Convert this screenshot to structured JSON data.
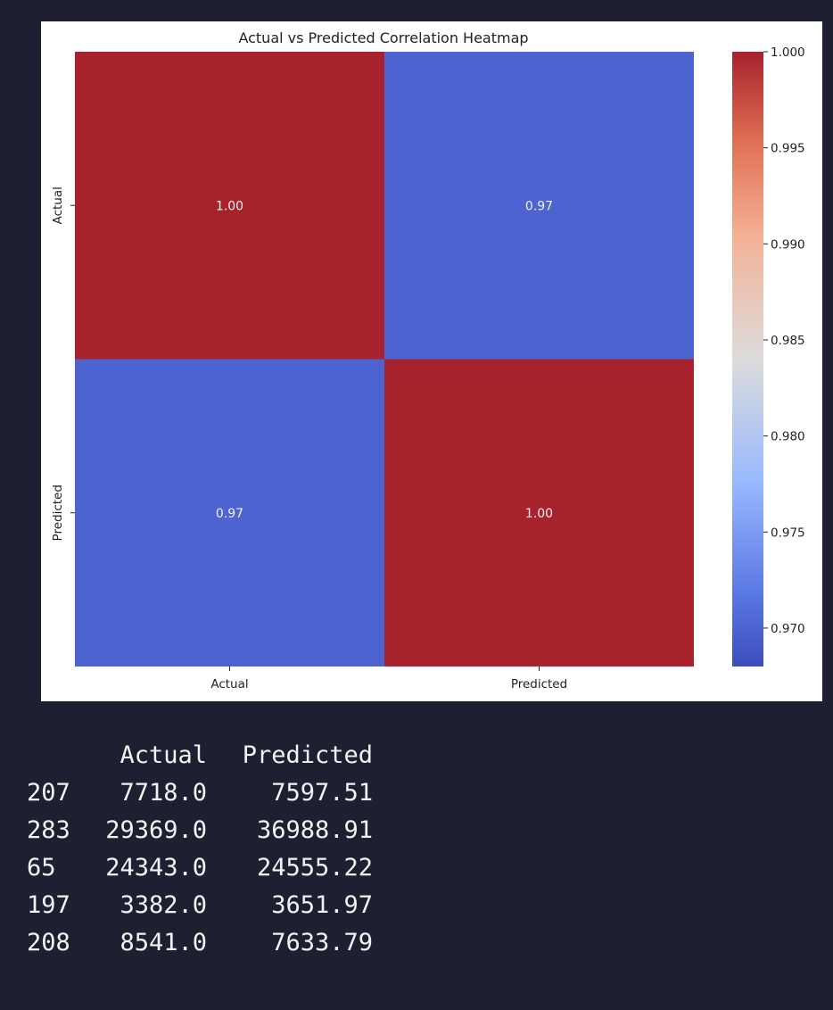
{
  "chart_data": {
    "type": "heatmap",
    "title": "Actual vs Predicted Correlation Heatmap",
    "x_labels": [
      "Actual",
      "Predicted"
    ],
    "y_labels": [
      "Actual",
      "Predicted"
    ],
    "values": [
      [
        1.0,
        0.97
      ],
      [
        0.97,
        1.0
      ]
    ],
    "cell_labels": [
      [
        "1.00",
        "0.97"
      ],
      [
        "0.97",
        "1.00"
      ]
    ],
    "colormap": "coolwarm",
    "colorbar": {
      "range": [
        0.968,
        1.0
      ],
      "ticks": [
        1.0,
        0.995,
        0.99,
        0.985,
        0.98,
        0.975,
        0.97
      ],
      "tick_labels": [
        "1.000",
        "0.995",
        "0.990",
        "0.985",
        "0.980",
        "0.975",
        "0.970"
      ]
    },
    "colors": {
      "high": "#a7222d",
      "low": "#3c4dbb"
    }
  },
  "output_table": {
    "columns": [
      "Actual",
      "Predicted"
    ],
    "rows": [
      {
        "index": "207",
        "actual": "7718.0",
        "predicted": "7597.51"
      },
      {
        "index": "283",
        "actual": "29369.0",
        "predicted": "36988.91"
      },
      {
        "index": "65",
        "actual": "24343.0",
        "predicted": "24555.22"
      },
      {
        "index": "197",
        "actual": "3382.0",
        "predicted": "3651.97"
      },
      {
        "index": "208",
        "actual": "8541.0",
        "predicted": "7633.79"
      }
    ]
  }
}
